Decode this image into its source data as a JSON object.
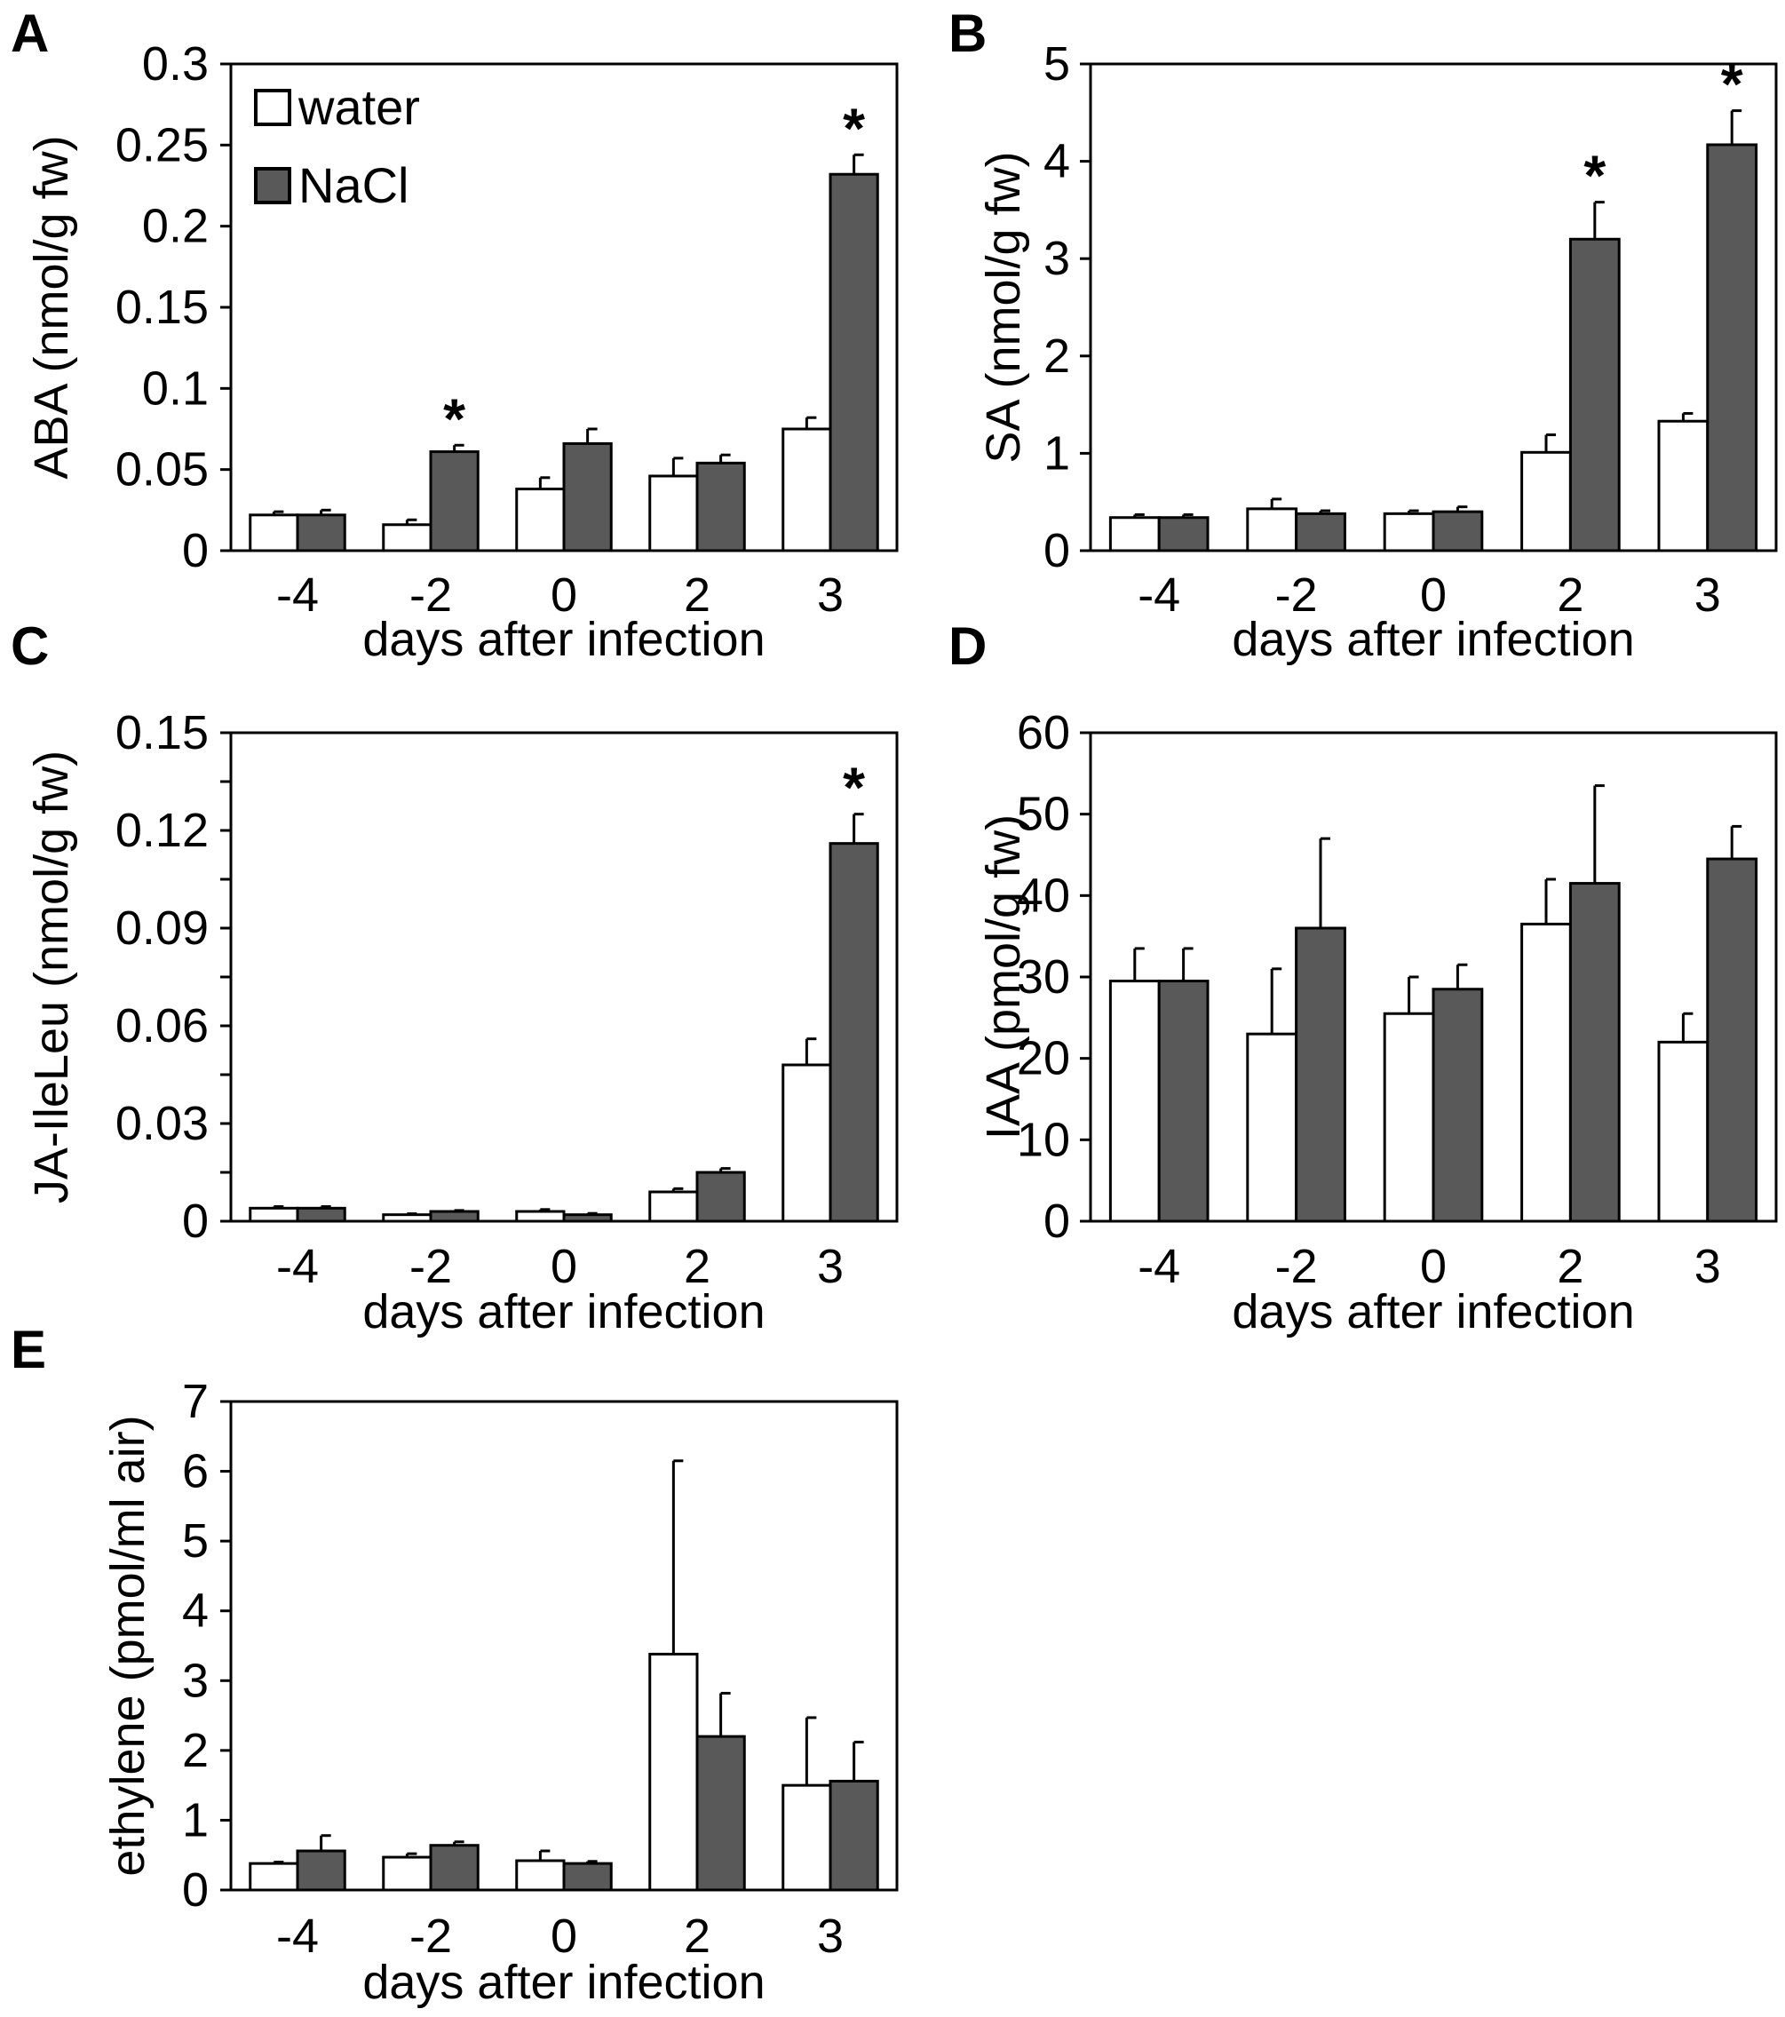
{
  "colors": {
    "water": "#ffffff",
    "nacl": "#595959",
    "stroke": "#000000"
  },
  "legend": [
    {
      "label": "water",
      "color": "#ffffff"
    },
    {
      "label": "NaCl",
      "color": "#595959"
    }
  ],
  "chart_data": [
    {
      "panel": "A",
      "type": "bar",
      "xlabel": "days after infection",
      "ylabel": "ABA (nmol/g fw)",
      "categories": [
        "-4",
        "-2",
        "0",
        "2",
        "3"
      ],
      "ylim": [
        0,
        0.3
      ],
      "yticks": [
        "0",
        "0.05",
        "0.1",
        "0.15",
        "0.2",
        "0.25",
        "0.3"
      ],
      "minor_ticks": false,
      "series": [
        {
          "name": "water",
          "values": [
            0.022,
            0.016,
            0.038,
            0.046,
            0.075
          ],
          "errors": [
            0.002,
            0.003,
            0.007,
            0.011,
            0.007
          ]
        },
        {
          "name": "NaCl",
          "values": [
            0.022,
            0.061,
            0.066,
            0.054,
            0.232
          ],
          "errors": [
            0.003,
            0.004,
            0.009,
            0.005,
            0.012
          ]
        }
      ],
      "significance": [
        "",
        "*",
        "",
        "",
        "*"
      ],
      "legend_position": "top-left"
    },
    {
      "panel": "B",
      "type": "bar",
      "xlabel": "days after infection",
      "ylabel": "SA (nmol/g fw)",
      "categories": [
        "-4",
        "-2",
        "0",
        "2",
        "3"
      ],
      "ylim": [
        0,
        5
      ],
      "yticks": [
        "0",
        "1",
        "2",
        "3",
        "4",
        "5"
      ],
      "minor_ticks": false,
      "series": [
        {
          "name": "water",
          "values": [
            0.34,
            0.43,
            0.38,
            1.01,
            1.33
          ],
          "errors": [
            0.03,
            0.1,
            0.03,
            0.18,
            0.08
          ]
        },
        {
          "name": "NaCl",
          "values": [
            0.34,
            0.38,
            0.4,
            3.2,
            4.17
          ],
          "errors": [
            0.03,
            0.03,
            0.05,
            0.38,
            0.35
          ]
        }
      ],
      "significance": [
        "",
        "",
        "",
        "*",
        "*"
      ]
    },
    {
      "panel": "C",
      "type": "bar",
      "xlabel": "days after infection",
      "ylabel": "JA-IleLeu (nmol/g fw)",
      "categories": [
        "-4",
        "-2",
        "0",
        "2",
        "3"
      ],
      "ylim": [
        0,
        0.15
      ],
      "yticks": [
        "0",
        "0.03",
        "0.06",
        "0.09",
        "0.12",
        "0.15"
      ],
      "minor_ticks": true,
      "series": [
        {
          "name": "water",
          "values": [
            0.004,
            0.002,
            0.003,
            0.009,
            0.048
          ],
          "errors": [
            0.0005,
            0.0003,
            0.0006,
            0.001,
            0.008
          ]
        },
        {
          "name": "NaCl",
          "values": [
            0.004,
            0.003,
            0.002,
            0.015,
            0.116
          ],
          "errors": [
            0.0005,
            0.0003,
            0.0004,
            0.0012,
            0.009
          ]
        }
      ],
      "significance": [
        "",
        "",
        "",
        "",
        "*"
      ]
    },
    {
      "panel": "D",
      "type": "bar",
      "xlabel": "days after infection",
      "ylabel": "IAA (pmol/g fw)",
      "categories": [
        "-4",
        "-2",
        "0",
        "2",
        "3"
      ],
      "ylim": [
        0,
        60
      ],
      "yticks": [
        "0",
        "10",
        "20",
        "30",
        "40",
        "50",
        "60"
      ],
      "minor_ticks": false,
      "series": [
        {
          "name": "water",
          "values": [
            29.5,
            23,
            25.5,
            36.5,
            22
          ],
          "errors": [
            4,
            8,
            4.5,
            5.5,
            3.5
          ]
        },
        {
          "name": "NaCl",
          "values": [
            29.5,
            36,
            28.5,
            41.5,
            44.5
          ],
          "errors": [
            4,
            11,
            3,
            12,
            4
          ]
        }
      ],
      "significance": [
        "",
        "",
        "",
        "",
        ""
      ]
    },
    {
      "panel": "E",
      "type": "bar",
      "xlabel": "days after infection",
      "ylabel": "ethylene (pmol/ml air)",
      "categories": [
        "-4",
        "-2",
        "0",
        "2",
        "3"
      ],
      "ylim": [
        0,
        7
      ],
      "yticks": [
        "0",
        "1",
        "2",
        "3",
        "4",
        "5",
        "6",
        "7"
      ],
      "minor_ticks": false,
      "series": [
        {
          "name": "water",
          "values": [
            0.38,
            0.47,
            0.42,
            3.38,
            1.5
          ],
          "errors": [
            0.02,
            0.05,
            0.14,
            2.77,
            0.97
          ]
        },
        {
          "name": "NaCl",
          "values": [
            0.56,
            0.64,
            0.38,
            2.2,
            1.56
          ],
          "errors": [
            0.22,
            0.05,
            0.03,
            0.62,
            0.56
          ]
        }
      ],
      "significance": [
        "",
        "",
        "",
        "",
        ""
      ]
    }
  ]
}
